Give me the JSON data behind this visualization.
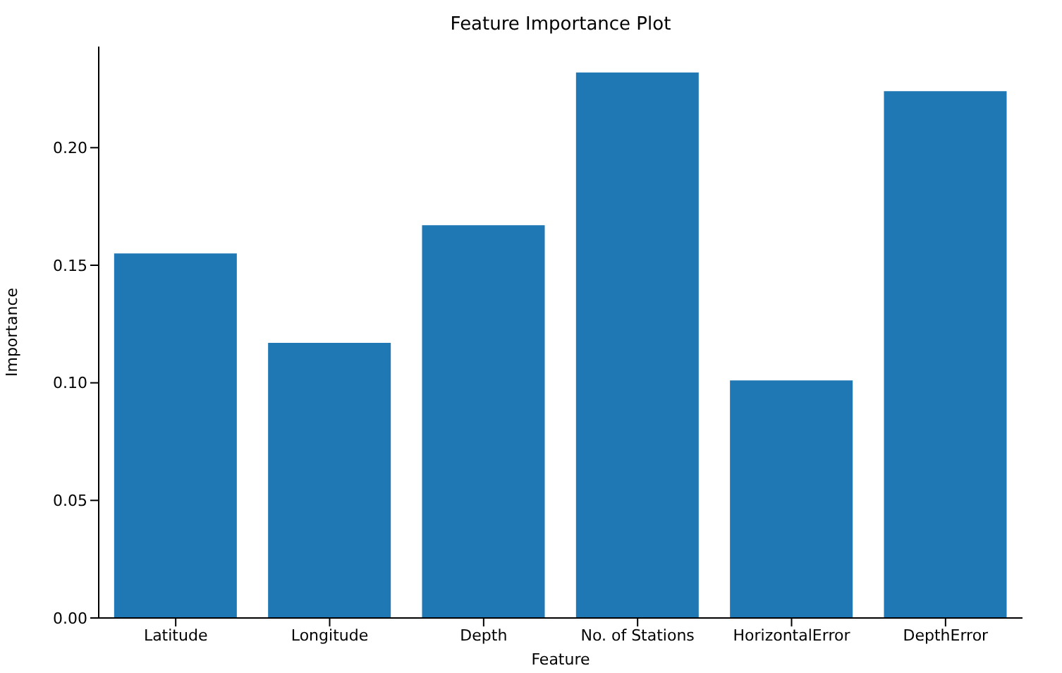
{
  "chart_data": {
    "type": "bar",
    "title": "Feature Importance Plot",
    "xlabel": "Feature",
    "ylabel": "Importance",
    "categories": [
      "Latitude",
      "Longitude",
      "Depth",
      "No. of Stations",
      "HorizontalError",
      "DepthError"
    ],
    "values": [
      0.155,
      0.117,
      0.167,
      0.232,
      0.101,
      0.224
    ],
    "color": "#1f77b4",
    "ylim": [
      0,
      0.243
    ],
    "yticks": [
      {
        "value": 0,
        "label": "0.00"
      },
      {
        "value": 0.05,
        "label": "0.05"
      },
      {
        "value": 0.1,
        "label": "0.10"
      },
      {
        "value": 0.15,
        "label": "0.15"
      },
      {
        "value": 0.2,
        "label": "0.20"
      }
    ],
    "grid": false
  }
}
